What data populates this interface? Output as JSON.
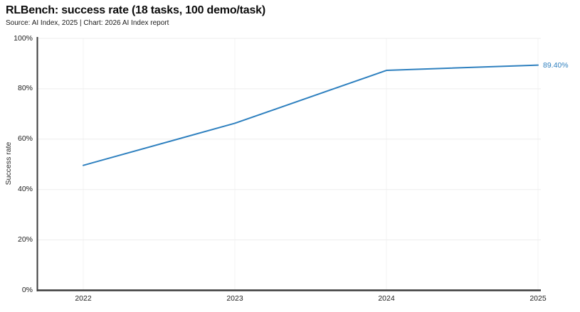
{
  "chart_data": {
    "type": "line",
    "title": "RLBench: success rate (18 tasks, 100 demo/task)",
    "subtitle": "Source: AI Index, 2025 | Chart: 2026 AI Index report",
    "xlabel": "",
    "ylabel": "Success rate",
    "x": [
      2022,
      2023,
      2024,
      2025
    ],
    "x_tick_labels": [
      "2022",
      "2023",
      "2024",
      "2025"
    ],
    "series": [
      {
        "name": "Success rate",
        "values": [
          49.6,
          66.3,
          87.3,
          89.4
        ]
      }
    ],
    "end_label": "89.40%",
    "ylim": [
      0,
      100
    ],
    "y_ticks": [
      0,
      20,
      40,
      60,
      80,
      100
    ],
    "y_tick_labels": [
      "0%",
      "20%",
      "40%",
      "60%",
      "80%",
      "100%"
    ],
    "grid": true,
    "legend_position": "none",
    "colors": {
      "line": "#2e80bf",
      "end_label": "#2e7fbe",
      "axis": "#3c3c3c",
      "grid_h": "#ededed",
      "grid_v": "#f3f3f3",
      "title": "#0c0c0c",
      "tick_text": "#1c1c1c"
    }
  }
}
